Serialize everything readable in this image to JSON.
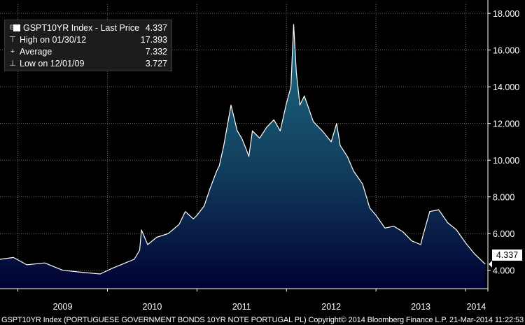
{
  "legend": {
    "title": "GSPT10YR Index - Last Price",
    "last_value": "4.337",
    "rows": [
      {
        "symbol": "⊤",
        "label": "High on 01/30/12",
        "value": "17.393"
      },
      {
        "symbol": "+",
        "label": "Average",
        "value": "7.332"
      },
      {
        "symbol": "⊥",
        "label": "Low on 12/01/09",
        "value": "3.727"
      }
    ]
  },
  "footer": "GSPT10YR Index (PORTUGUESE GOVERNMENT BONDS 10YR NOTE PORTUGAL PL)  Copyright© 2014 Bloomberg Finance L.P.  21-Mar-2014 11:22:53",
  "last_price_label": "4.337",
  "colors": {
    "background": "#000000",
    "fill_top": "#1e6f86",
    "fill_bottom": "#000033",
    "line": "#ffffff",
    "grid": "#6b6b6b"
  },
  "chart_data": {
    "type": "area",
    "title": "GSPT10YR Index - Last Price",
    "ylim": [
      3.0,
      18.5
    ],
    "yticks": [
      4.0,
      6.0,
      8.0,
      10.0,
      12.0,
      14.0,
      16.0,
      18.0
    ],
    "ytick_labels": [
      "4.000",
      "6.000",
      "8.000",
      "10.000",
      "12.000",
      "14.000",
      "16.000",
      "18.000"
    ],
    "xlim": [
      2008.8,
      2014.25
    ],
    "x_year_boundaries": [
      2009,
      2010,
      2011,
      2012,
      2013,
      2014
    ],
    "x_labels": [
      {
        "label": "2009",
        "x": 2009.5
      },
      {
        "label": "2010",
        "x": 2010.5
      },
      {
        "label": "2011",
        "x": 2011.5
      },
      {
        "label": "2012",
        "x": 2012.5
      },
      {
        "label": "2013",
        "x": 2013.5
      },
      {
        "label": "2014",
        "x": 2014.12
      }
    ],
    "grid": true,
    "series": [
      {
        "name": "GSPT10YR Index",
        "x": [
          2008.8,
          2008.95,
          2009.1,
          2009.3,
          2009.5,
          2009.7,
          2009.92,
          2010.05,
          2010.2,
          2010.3,
          2010.36,
          2010.38,
          2010.45,
          2010.55,
          2010.68,
          2010.8,
          2010.87,
          2010.96,
          2011.0,
          2011.08,
          2011.15,
          2011.22,
          2011.25,
          2011.3,
          2011.38,
          2011.45,
          2011.5,
          2011.55,
          2011.58,
          2011.62,
          2011.7,
          2011.78,
          2011.86,
          2011.93,
          2012.0,
          2012.05,
          2012.08,
          2012.11,
          2012.15,
          2012.2,
          2012.3,
          2012.4,
          2012.5,
          2012.56,
          2012.6,
          2012.68,
          2012.75,
          2012.85,
          2012.93,
          2013.0,
          2013.1,
          2013.2,
          2013.3,
          2013.4,
          2013.5,
          2013.52,
          2013.6,
          2013.7,
          2013.8,
          2013.9,
          2014.0,
          2014.1,
          2014.22
        ],
        "y": [
          4.6,
          4.7,
          4.3,
          4.4,
          4.0,
          3.9,
          3.8,
          4.1,
          4.4,
          4.6,
          5.1,
          6.2,
          5.4,
          5.8,
          6.0,
          6.5,
          7.2,
          6.8,
          7.0,
          7.5,
          8.5,
          9.4,
          9.7,
          10.8,
          13.0,
          11.6,
          11.2,
          10.6,
          10.2,
          11.6,
          11.2,
          11.8,
          12.2,
          11.6,
          13.1,
          14.0,
          17.4,
          14.8,
          13.0,
          13.5,
          12.1,
          11.6,
          11.0,
          12.0,
          10.8,
          10.2,
          9.4,
          8.7,
          7.4,
          7.0,
          6.3,
          6.4,
          6.1,
          5.6,
          5.4,
          5.8,
          7.2,
          7.3,
          6.6,
          6.2,
          5.5,
          4.9,
          4.337
        ]
      }
    ]
  }
}
